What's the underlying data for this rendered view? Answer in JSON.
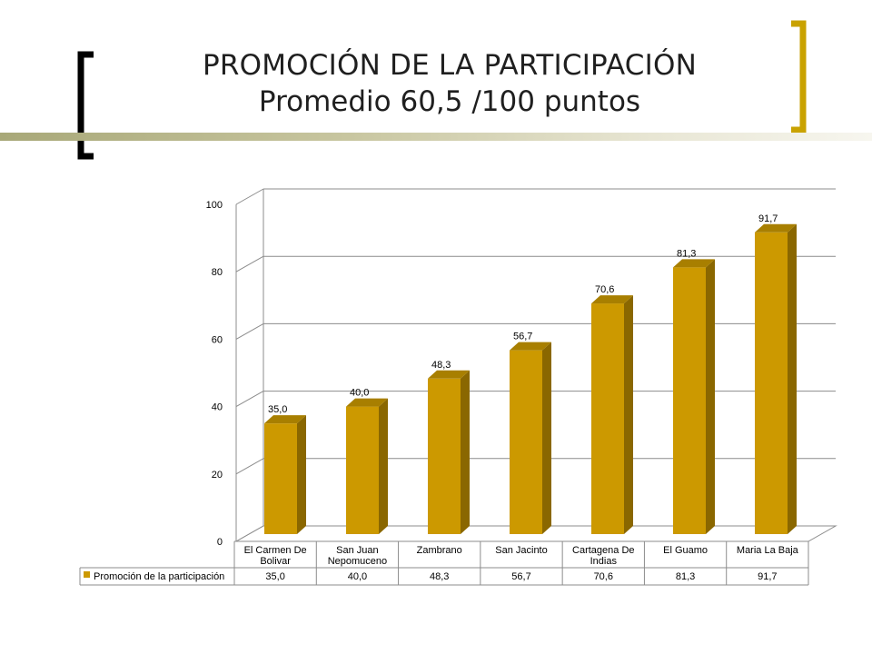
{
  "slide": {
    "title_line1": "PROMOCIÓN DE LA PARTICIPACIÓN",
    "title_line2": "Promedio 60,5 /100 puntos"
  },
  "colors": {
    "bar_front": "#CC9900",
    "bar_side": "#8A6700",
    "bar_top": "#A87F00",
    "accent_black": "#000000",
    "accent_gold": "#C9A200"
  },
  "chart_data": {
    "type": "bar",
    "categories": [
      "El Carmen De Bolivar",
      "San Juan Nepomuceno",
      "Zambrano",
      "San Jacinto",
      "Cartagena De Indias",
      "El Guamo",
      "Maria La Baja"
    ],
    "category_lines": [
      [
        "El Carmen De",
        "Bolivar"
      ],
      [
        "San Juan",
        "Nepomuceno"
      ],
      [
        "Zambrano"
      ],
      [
        "San Jacinto"
      ],
      [
        "Cartagena De",
        "Indias"
      ],
      [
        "El Guamo"
      ],
      [
        "Maria La Baja"
      ]
    ],
    "series": [
      {
        "name": "Promoción de la participación",
        "values": [
          35.0,
          40.0,
          48.3,
          56.7,
          70.6,
          81.3,
          91.7
        ],
        "value_labels": [
          "35,0",
          "40,0",
          "48,3",
          "56,7",
          "70,6",
          "81,3",
          "91,7"
        ]
      }
    ],
    "yticks": [
      "0",
      "20",
      "40",
      "60",
      "80",
      "100"
    ],
    "ylim": [
      0,
      100
    ],
    "grid": true,
    "data_table": true
  }
}
